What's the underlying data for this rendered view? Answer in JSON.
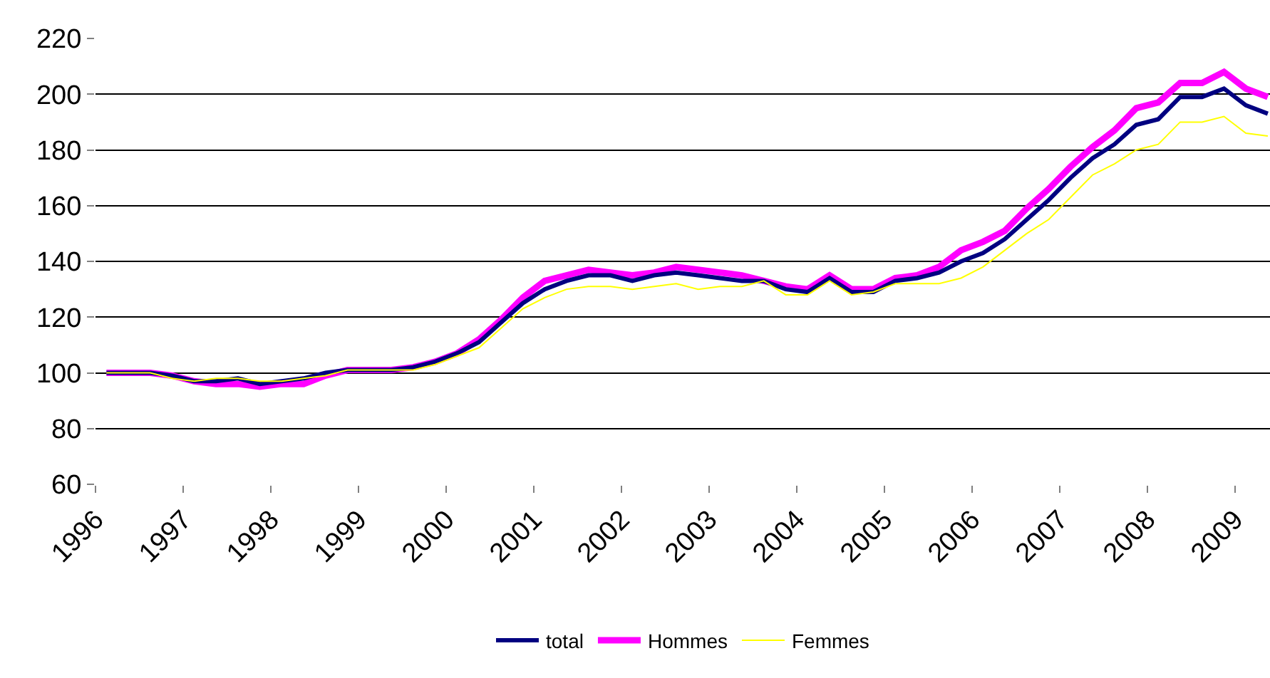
{
  "chart_data": {
    "type": "line",
    "x": [
      1996.125,
      1996.375,
      1996.625,
      1996.875,
      1997.125,
      1997.375,
      1997.625,
      1997.875,
      1998.125,
      1998.375,
      1998.625,
      1998.875,
      1999.125,
      1999.375,
      1999.625,
      1999.875,
      2000.125,
      2000.375,
      2000.625,
      2000.875,
      2001.125,
      2001.375,
      2001.625,
      2001.875,
      2002.125,
      2002.375,
      2002.625,
      2002.875,
      2003.125,
      2003.375,
      2003.625,
      2003.875,
      2004.125,
      2004.375,
      2004.625,
      2004.875,
      2005.125,
      2005.375,
      2005.625,
      2005.875,
      2006.125,
      2006.375,
      2006.625,
      2006.875,
      2007.125,
      2007.375,
      2007.625,
      2007.875,
      2008.125,
      2008.375,
      2008.625,
      2008.875,
      2009.125,
      2009.375
    ],
    "series": [
      {
        "name": "total",
        "color": "#000080",
        "values": [
          100,
          100,
          100,
          99,
          97,
          97,
          98,
          96,
          97,
          98,
          100,
          101,
          101,
          101,
          102,
          104,
          107,
          111,
          118,
          125,
          130,
          133,
          135,
          135,
          133,
          135,
          136,
          135,
          134,
          133,
          133,
          130,
          129,
          134,
          129,
          129,
          133,
          134,
          136,
          140,
          143,
          148,
          155,
          162,
          170,
          177,
          182,
          189,
          191,
          199,
          199,
          202,
          196,
          193
        ]
      },
      {
        "name": "Hommes",
        "color": "#ff00ff",
        "values": [
          100,
          100,
          100,
          99,
          97,
          96,
          96,
          95,
          96,
          96,
          99,
          101,
          101,
          101,
          102,
          104,
          107,
          112,
          119,
          127,
          133,
          135,
          137,
          136,
          135,
          136,
          138,
          137,
          136,
          135,
          133,
          131,
          130,
          135,
          130,
          130,
          134,
          135,
          138,
          144,
          147,
          151,
          159,
          166,
          174,
          181,
          187,
          195,
          197,
          204,
          204,
          208,
          202,
          199
        ]
      },
      {
        "name": "Femmes",
        "color": "#ffff00",
        "values": [
          100,
          100,
          100,
          98,
          97,
          98,
          98,
          97,
          97,
          98,
          99,
          101,
          101,
          101,
          101,
          103,
          106,
          109,
          116,
          123,
          127,
          130,
          131,
          131,
          130,
          131,
          132,
          130,
          131,
          131,
          133,
          128,
          128,
          133,
          128,
          129,
          132,
          132,
          132,
          134,
          138,
          144,
          150,
          155,
          163,
          171,
          175,
          180,
          182,
          190,
          190,
          192,
          186,
          185
        ]
      }
    ],
    "xlim": [
      1996,
      2009.4
    ],
    "xticks": [
      1996,
      1997,
      1998,
      1999,
      2000,
      2001,
      2002,
      2003,
      2004,
      2005,
      2006,
      2007,
      2008,
      2009
    ],
    "ylim": [
      60,
      220
    ],
    "yticks": [
      60,
      80,
      100,
      120,
      140,
      160,
      180,
      200,
      220
    ],
    "grid": "y",
    "legend": "bottom",
    "marker": "none",
    "line_style": "solid"
  }
}
